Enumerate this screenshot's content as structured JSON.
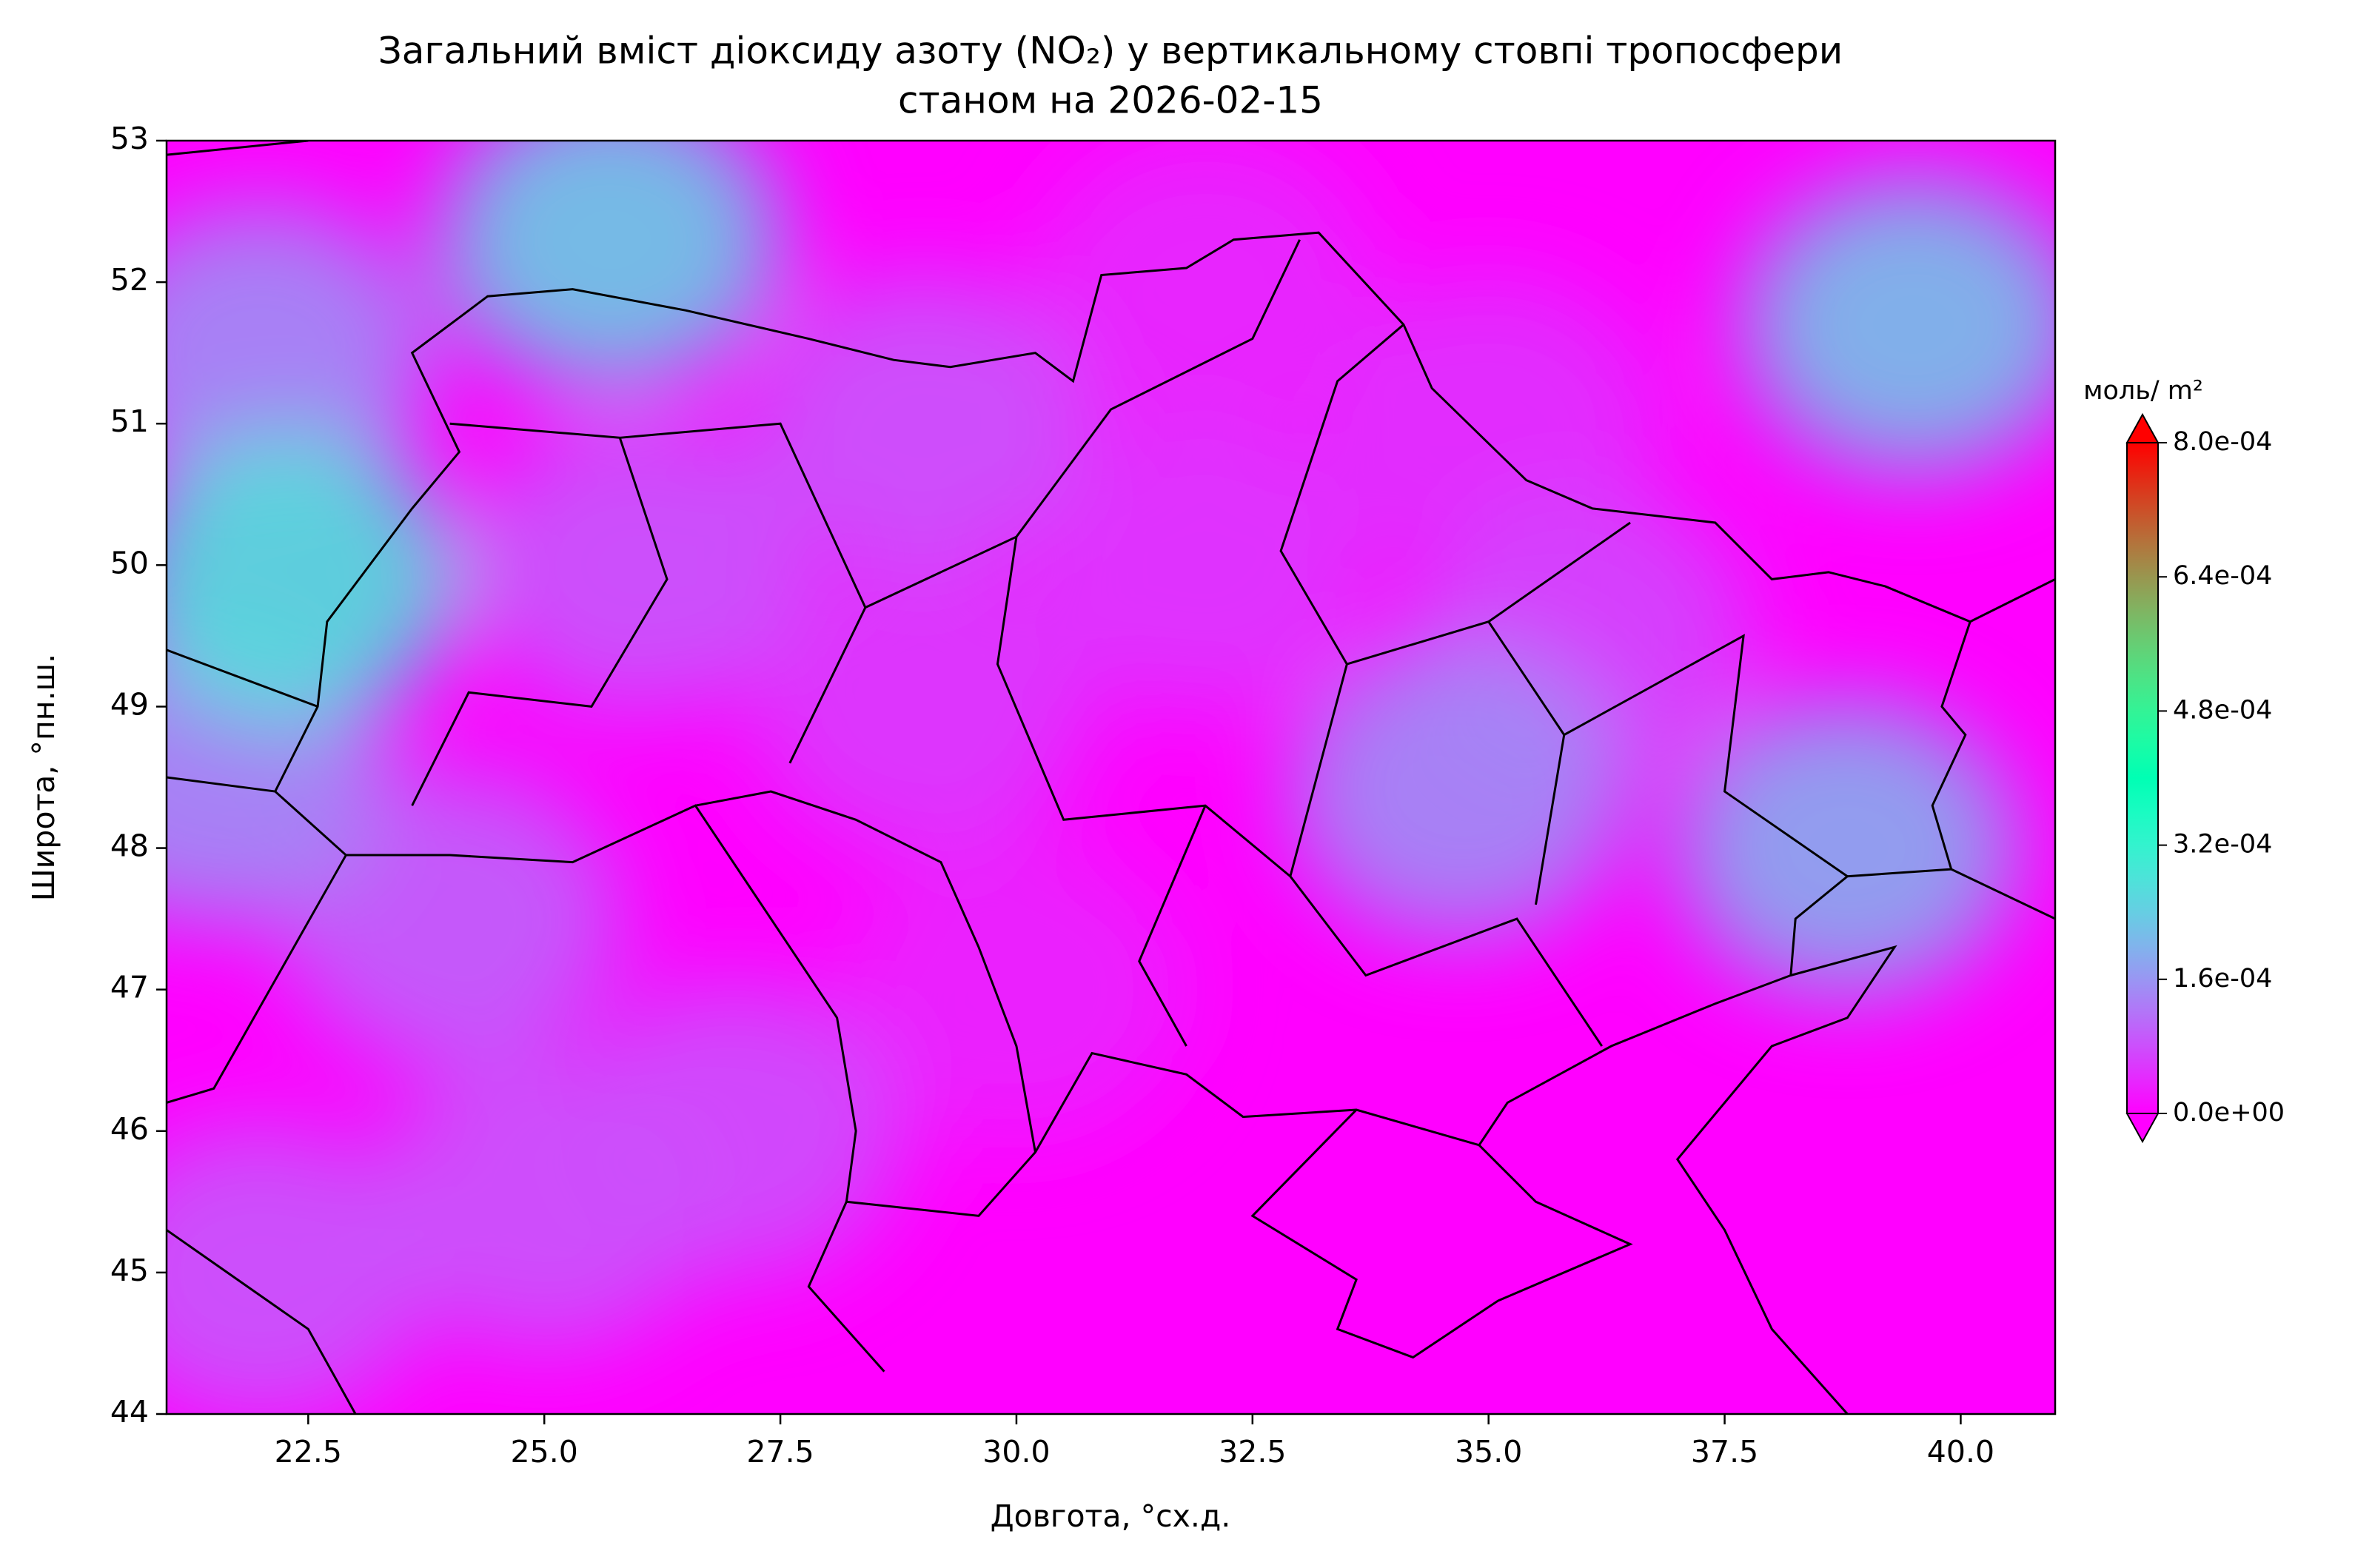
{
  "chart_data": {
    "type": "contour-map",
    "title": "Загальний вміст діоксиду азоту (NO₂) у вертикальному стовпі тропосфери",
    "subtitle": "станом на 2026-02-15",
    "x_label": "Довгота, °сх.д.",
    "y_label": "Широта, °пн.ш.",
    "xlim": [
      21,
      41
    ],
    "ylim": [
      44,
      53
    ],
    "xticks": [
      22.5,
      {
        "value": 25,
        "label": "25.0"
      },
      27.5,
      {
        "value": 30,
        "label": "30.0"
      },
      32.5,
      {
        "value": 35,
        "label": "35.0"
      },
      37.5,
      {
        "value": 40,
        "label": "40.0"
      }
    ],
    "yticks": [
      44,
      45,
      46,
      47,
      48,
      49,
      50,
      51,
      52,
      53
    ],
    "colormap": "rainbow",
    "colorbar_label": "моль/ m²",
    "clim": [
      0,
      0.0008
    ],
    "colorbar_ticks": [
      {
        "value": 0,
        "label": "0.0e+00"
      },
      {
        "value": 0.00016,
        "label": "1.6e-04"
      },
      {
        "value": 0.00032,
        "label": "3.2e-04"
      },
      {
        "value": 0.00048,
        "label": "4.8e-04"
      },
      {
        "value": 0.00064,
        "label": "6.4e-04"
      },
      {
        "value": 0.0008,
        "label": "8.0e-04"
      }
    ],
    "field": {
      "lon": [
        30,
        32,
        35,
        29,
        32,
        36,
        22,
        25,
        27,
        24,
        26,
        29,
        21.5,
        22,
        34.7,
        38.8,
        39.5,
        25.7,
        22.3
      ],
      "lat": [
        47,
        52,
        51,
        49,
        50,
        49.5,
        45,
        45.5,
        46,
        47.5,
        50,
        51,
        48.5,
        51.5,
        48.4,
        48,
        51.7,
        52.3,
        49.9
      ],
      "values": [
        3.5e-05,
        4e-05,
        5e-05,
        6e-05,
        5.5e-05,
        7e-05,
        9e-05,
        8.5e-05,
        8e-05,
        0.0001,
        9e-05,
        8.5e-05,
        0.00015,
        0.00015,
        0.00015,
        0.00019,
        0.00022,
        0.00024,
        0.00028
      ]
    }
  }
}
